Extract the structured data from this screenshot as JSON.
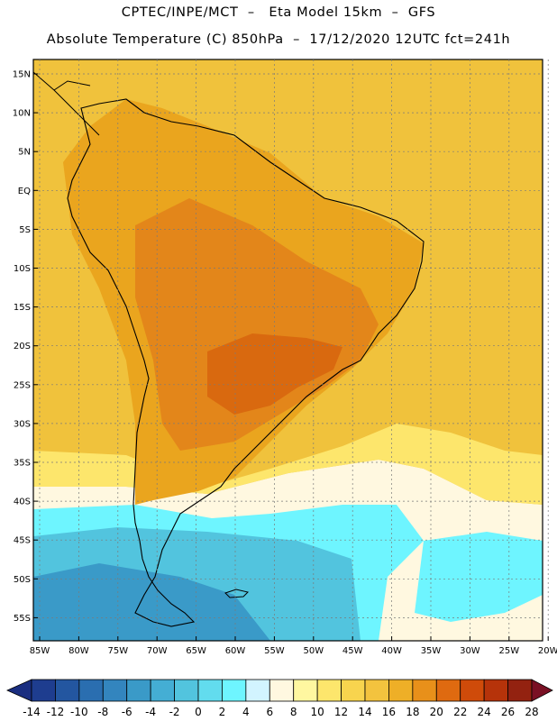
{
  "header": {
    "line1": "CPTEC/INPE/MCT  –   Eta Model 15km  –  GFS",
    "line2": "Absolute Temperature (C) 850hPa  –  17/12/2020 12UTC fct=241h"
  },
  "latitude_labels": [
    "15N",
    "10N",
    "5N",
    "EQ",
    "5S",
    "10S",
    "15S",
    "20S",
    "25S",
    "30S",
    "35S",
    "40S",
    "45S",
    "50S",
    "55S"
  ],
  "longitude_labels": [
    "85W",
    "80W",
    "75W",
    "70W",
    "65W",
    "60W",
    "55W",
    "50W",
    "45W",
    "40W",
    "35W",
    "30W",
    "25W",
    "20W"
  ],
  "colorbar": {
    "labels": [
      "-14",
      "-12",
      "-10",
      "-8",
      "-6",
      "-4",
      "-2",
      "0",
      "2",
      "4",
      "6",
      "8",
      "10",
      "12",
      "14",
      "16",
      "18",
      "20",
      "22",
      "24",
      "26",
      "28"
    ],
    "colors": [
      "#1e3d8f",
      "#2356a0",
      "#2a6eb0",
      "#3385be",
      "#3a9ac8",
      "#44aed4",
      "#52c4de",
      "#62dcee",
      "#6ef5ff",
      "#d2f4ff",
      "#fff8e0",
      "#fff7a0",
      "#fde66c",
      "#f8d44e",
      "#f3c33e",
      "#eeaf27",
      "#e8901a",
      "#df6a10",
      "#cf4b0a",
      "#b6330a",
      "#932210"
    ],
    "under_color": "#1a2e80",
    "over_color": "#7a1024"
  },
  "legend_colors": {
    "ocean_warm": "#f0c23c",
    "land_warm": "#eaa51e",
    "land_hot": "#e3861a",
    "land_hottest": "#d9690f",
    "mild": "#fde66c",
    "cool": "#fff8e0",
    "cold": "#6ef5ff",
    "colder": "#52c4de",
    "coldest": "#3a9ac8",
    "coast_line": "#000000"
  }
}
